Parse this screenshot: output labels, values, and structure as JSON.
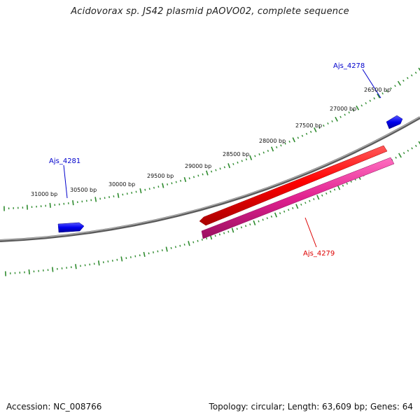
{
  "title": "Acidovorax sp. JS42 plasmid pAOVO02, complete sequence",
  "footer": {
    "accession": "Accession: NC_008766",
    "summary": "Topology: circular; Length: 63,609 bp; Genes: 64"
  },
  "colors": {
    "backbone": "#7a7a7a",
    "tick": "#2e8b2e",
    "forward_gene": "#0000ee",
    "reverse_gene": "#ee0000",
    "pink_feature": "#e0208f",
    "label_blue": "#0000cc",
    "label_red": "#dd0000"
  },
  "tick_labels": [
    "26500 bp",
    "27000 bp",
    "27500 bp",
    "28000 bp",
    "28500 bp",
    "29000 bp",
    "29500 bp",
    "30000 bp",
    "30500 bp",
    "31000 bp"
  ],
  "genes": [
    {
      "label": "Ajs_4278",
      "strand": "forward",
      "color": "blue"
    },
    {
      "label": "Ajs_4279",
      "strand": "reverse",
      "color": "red"
    },
    {
      "label": "Ajs_4281",
      "strand": "forward",
      "color": "blue"
    }
  ]
}
